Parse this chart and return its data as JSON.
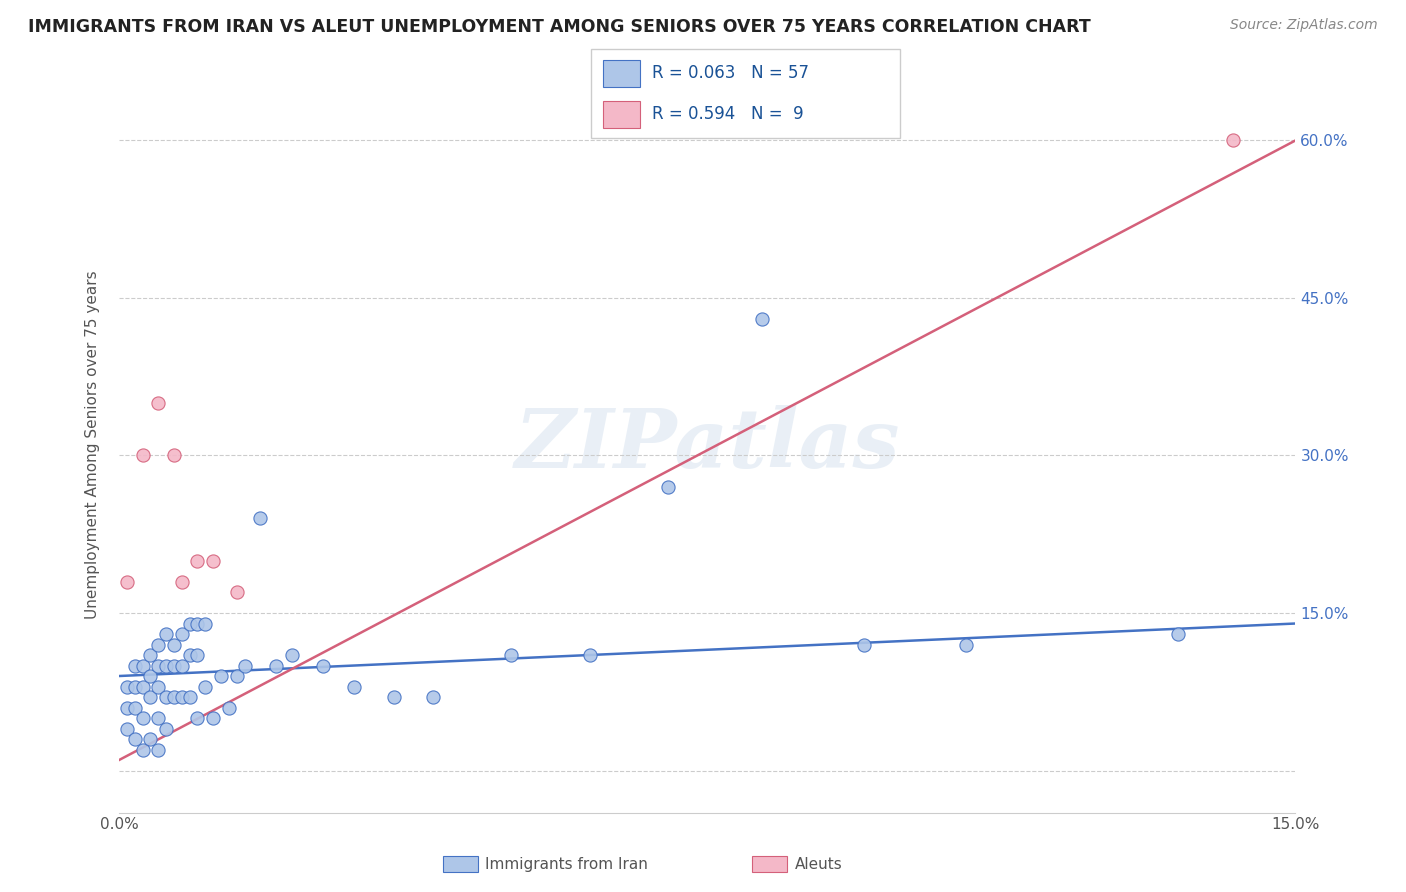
{
  "title": "IMMIGRANTS FROM IRAN VS ALEUT UNEMPLOYMENT AMONG SENIORS OVER 75 YEARS CORRELATION CHART",
  "source": "Source: ZipAtlas.com",
  "ylabel": "Unemployment Among Seniors over 75 years",
  "watermark": "ZIPatlas",
  "xlim": [
    0.0,
    0.15
  ],
  "ylim": [
    -0.04,
    0.66
  ],
  "yticks": [
    0.0,
    0.15,
    0.3,
    0.45,
    0.6
  ],
  "ytick_labels": [
    "",
    "15.0%",
    "30.0%",
    "45.0%",
    "60.0%"
  ],
  "xticks": [
    0.0,
    0.15
  ],
  "xtick_labels": [
    "0.0%",
    "15.0%"
  ],
  "blue_fill": "#aec6e8",
  "blue_edge": "#4472c4",
  "pink_fill": "#f4b8c8",
  "pink_edge": "#d4607a",
  "blue_line": "#4472c4",
  "pink_line": "#d4607a",
  "legend_R1": "R = 0.063",
  "legend_N1": "N = 57",
  "legend_R2": "R = 0.594",
  "legend_N2": "N =  9",
  "legend_label1": "Immigrants from Iran",
  "legend_label2": "Aleuts",
  "blue_scatter_x": [
    0.001,
    0.001,
    0.001,
    0.002,
    0.002,
    0.002,
    0.002,
    0.003,
    0.003,
    0.003,
    0.003,
    0.004,
    0.004,
    0.004,
    0.004,
    0.005,
    0.005,
    0.005,
    0.005,
    0.005,
    0.006,
    0.006,
    0.006,
    0.006,
    0.007,
    0.007,
    0.007,
    0.008,
    0.008,
    0.008,
    0.009,
    0.009,
    0.009,
    0.01,
    0.01,
    0.01,
    0.011,
    0.011,
    0.012,
    0.013,
    0.014,
    0.015,
    0.016,
    0.018,
    0.02,
    0.022,
    0.026,
    0.03,
    0.035,
    0.04,
    0.05,
    0.06,
    0.07,
    0.082,
    0.095,
    0.108,
    0.135
  ],
  "blue_scatter_y": [
    0.08,
    0.06,
    0.04,
    0.1,
    0.08,
    0.06,
    0.03,
    0.1,
    0.08,
    0.05,
    0.02,
    0.11,
    0.09,
    0.07,
    0.03,
    0.12,
    0.1,
    0.08,
    0.05,
    0.02,
    0.13,
    0.1,
    0.07,
    0.04,
    0.12,
    0.1,
    0.07,
    0.13,
    0.1,
    0.07,
    0.14,
    0.11,
    0.07,
    0.14,
    0.11,
    0.05,
    0.14,
    0.08,
    0.05,
    0.09,
    0.06,
    0.09,
    0.1,
    0.24,
    0.1,
    0.11,
    0.1,
    0.08,
    0.07,
    0.07,
    0.11,
    0.11,
    0.27,
    0.43,
    0.12,
    0.12,
    0.13
  ],
  "pink_scatter_x": [
    0.001,
    0.003,
    0.005,
    0.007,
    0.008,
    0.01,
    0.012,
    0.015,
    0.142
  ],
  "pink_scatter_y": [
    0.18,
    0.3,
    0.35,
    0.3,
    0.18,
    0.2,
    0.2,
    0.17,
    0.6
  ],
  "blue_trend_x": [
    0.0,
    0.15
  ],
  "blue_trend_y": [
    0.09,
    0.14
  ],
  "pink_trend_x": [
    0.0,
    0.15
  ],
  "pink_trend_y": [
    0.01,
    0.6
  ]
}
